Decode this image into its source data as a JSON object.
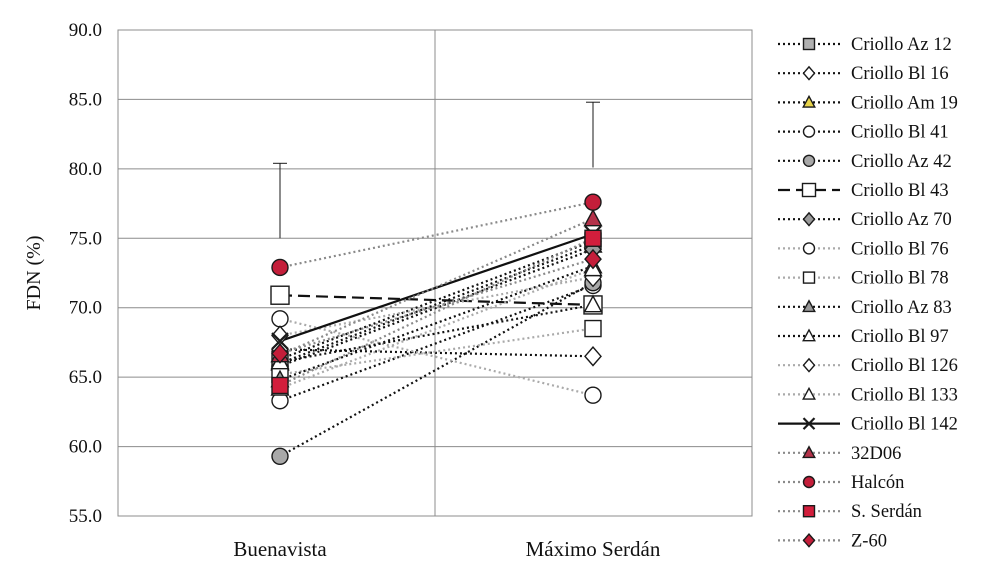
{
  "chart_data": {
    "type": "line",
    "ylabel": "FDN  (%)",
    "categories": [
      "Buenavista",
      "Máximo Serdán"
    ],
    "ylim": [
      55.0,
      90.0
    ],
    "yticks": [
      "55.0",
      "60.0",
      "65.0",
      "70.0",
      "75.0",
      "80.0",
      "85.0",
      "90.0"
    ],
    "grid": true,
    "legend_position": "right",
    "error_bars": [
      {
        "category": "Buenavista",
        "low": 75.0,
        "high": 80.4
      },
      {
        "category": "Máximo Serdán",
        "low": 80.1,
        "high": 84.8
      }
    ],
    "series": [
      {
        "name": "Criollo Az 12",
        "values": [
          66.3,
          74.8
        ],
        "marker": "square",
        "fill": "#b0b0b0",
        "line": "dotted",
        "color": "#111111"
      },
      {
        "name": "Criollo Bl 16",
        "values": [
          67.0,
          66.5
        ],
        "marker": "diamond",
        "fill": "#ffffff",
        "line": "dotted",
        "color": "#111111"
      },
      {
        "name": "Criollo Am 19",
        "values": [
          66.0,
          74.5
        ],
        "marker": "triangle",
        "fill": "#e8d44a",
        "line": "dotted",
        "color": "#111111"
      },
      {
        "name": "Criollo Bl 41",
        "values": [
          63.3,
          71.6
        ],
        "marker": "circle",
        "fill": "#ffffff",
        "line": "dotted",
        "color": "#111111"
      },
      {
        "name": "Criollo Az 42",
        "values": [
          59.3,
          71.8
        ],
        "marker": "circle",
        "fill": "#a8a8a8",
        "line": "dotted",
        "color": "#111111"
      },
      {
        "name": "Criollo Bl 43",
        "values": [
          70.9,
          70.2
        ],
        "marker": "square",
        "fill": "#ffffff",
        "line": "dashed",
        "color": "#111111"
      },
      {
        "name": "Criollo Az 70",
        "values": [
          65.8,
          74.2
        ],
        "marker": "diamond",
        "fill": "#9a9a9a",
        "line": "dotted",
        "color": "#111111"
      },
      {
        "name": "Criollo Bl 76",
        "values": [
          69.2,
          63.7
        ],
        "marker": "circle",
        "fill": "#ffffff",
        "line": "dotted",
        "color": "#aaaaaa"
      },
      {
        "name": "Criollo Bl 78",
        "values": [
          65.2,
          68.5
        ],
        "marker": "square",
        "fill": "#ffffff",
        "line": "dotted",
        "color": "#aaaaaa"
      },
      {
        "name": "Criollo Az 83",
        "values": [
          64.8,
          73.0
        ],
        "marker": "triangle",
        "fill": "#9a9a9a",
        "line": "dotted",
        "color": "#111111"
      },
      {
        "name": "Criollo Bl 97",
        "values": [
          66.1,
          70.2
        ],
        "marker": "triangle",
        "fill": "#ffffff",
        "line": "dotted",
        "color": "#111111"
      },
      {
        "name": "Criollo Bl 126",
        "values": [
          68.0,
          72.2
        ],
        "marker": "diamond",
        "fill": "#ffffff",
        "line": "dotted",
        "color": "#aaaaaa"
      },
      {
        "name": "Criollo Bl 133",
        "values": [
          64.2,
          72.8
        ],
        "marker": "triangle",
        "fill": "#ffffff",
        "line": "dotted",
        "color": "#aaaaaa"
      },
      {
        "name": "Criollo Bl 142",
        "values": [
          67.6,
          75.3
        ],
        "marker": "x",
        "fill": "none",
        "line": "solid",
        "color": "#111111"
      },
      {
        "name": "32D06",
        "values": [
          66.6,
          76.4
        ],
        "marker": "triangle",
        "fill": "#b4324a",
        "line": "dotted",
        "color": "#8a8a8a"
      },
      {
        "name": "Halcón",
        "values": [
          72.9,
          77.6
        ],
        "marker": "circle",
        "fill": "#c41e3a",
        "line": "dotted",
        "color": "#8a8a8a"
      },
      {
        "name": "S. Serdán",
        "values": [
          64.4,
          75.0
        ],
        "marker": "square",
        "fill": "#d21e3c",
        "line": "dotted",
        "color": "#8a8a8a"
      },
      {
        "name": "Z-60",
        "values": [
          66.7,
          73.5
        ],
        "marker": "diamond",
        "fill": "#c41e3a",
        "line": "dotted",
        "color": "#8a8a8a"
      }
    ]
  }
}
